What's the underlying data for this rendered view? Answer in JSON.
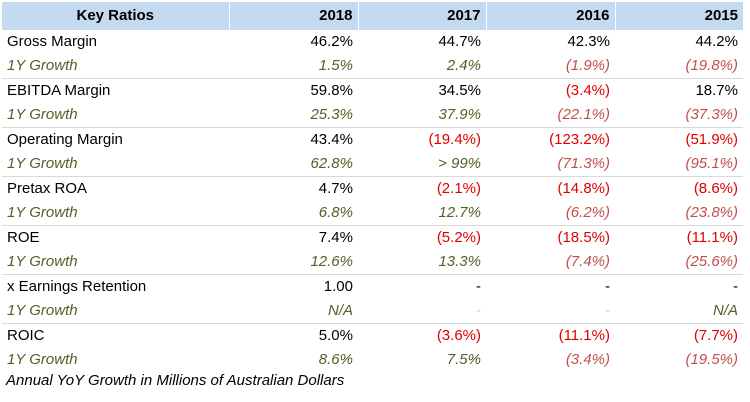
{
  "table": {
    "headers": [
      "Key Ratios",
      "2018",
      "2017",
      "2016",
      "2015"
    ],
    "rows": [
      {
        "label": "Gross Margin",
        "values": [
          "46.2%",
          "44.7%",
          "42.3%",
          "44.2%"
        ],
        "growth_label": "1Y Growth",
        "growth": [
          "1.5%",
          "2.4%",
          "(1.9%)",
          "(19.8%)"
        ]
      },
      {
        "label": "EBITDA Margin",
        "values": [
          "59.8%",
          "34.5%",
          "(3.4%)",
          "18.7%"
        ],
        "growth_label": "1Y Growth",
        "growth": [
          "25.3%",
          "37.9%",
          "(22.1%)",
          "(37.3%)"
        ]
      },
      {
        "label": "Operating Margin",
        "values": [
          "43.4%",
          "(19.4%)",
          "(123.2%)",
          "(51.9%)"
        ],
        "growth_label": "1Y Growth",
        "growth": [
          "62.8%",
          "> 99%",
          "(71.3%)",
          "(95.1%)"
        ]
      },
      {
        "label": "Pretax ROA",
        "values": [
          "4.7%",
          "(2.1%)",
          "(14.8%)",
          "(8.6%)"
        ],
        "growth_label": "1Y Growth",
        "growth": [
          "6.8%",
          "12.7%",
          "(6.2%)",
          "(23.8%)"
        ]
      },
      {
        "label": "ROE",
        "values": [
          "7.4%",
          "(5.2%)",
          "(18.5%)",
          "(11.1%)"
        ],
        "growth_label": "1Y Growth",
        "growth": [
          "12.6%",
          "13.3%",
          "(7.4%)",
          "(25.6%)"
        ]
      },
      {
        "label": "x Earnings Retention",
        "values": [
          "1.00",
          "-",
          "-",
          "-"
        ],
        "growth_label": "1Y Growth",
        "growth": [
          "N/A",
          "-",
          "-",
          "N/A"
        ]
      },
      {
        "label": "ROIC",
        "values": [
          "5.0%",
          "(3.6%)",
          "(11.1%)",
          "(7.7%)"
        ],
        "growth_label": "1Y Growth",
        "growth": [
          "8.6%",
          "7.5%",
          "(3.4%)",
          "(19.5%)"
        ]
      }
    ]
  },
  "footnote": "Annual YoY Growth in Millions of Australian Dollars",
  "colors": {
    "header_bg": "#c5d9f1",
    "growth_text": "#4f6228",
    "negative_value": "#e00000",
    "negative_growth": "#c0504d",
    "divider": "#d9d9d9"
  }
}
